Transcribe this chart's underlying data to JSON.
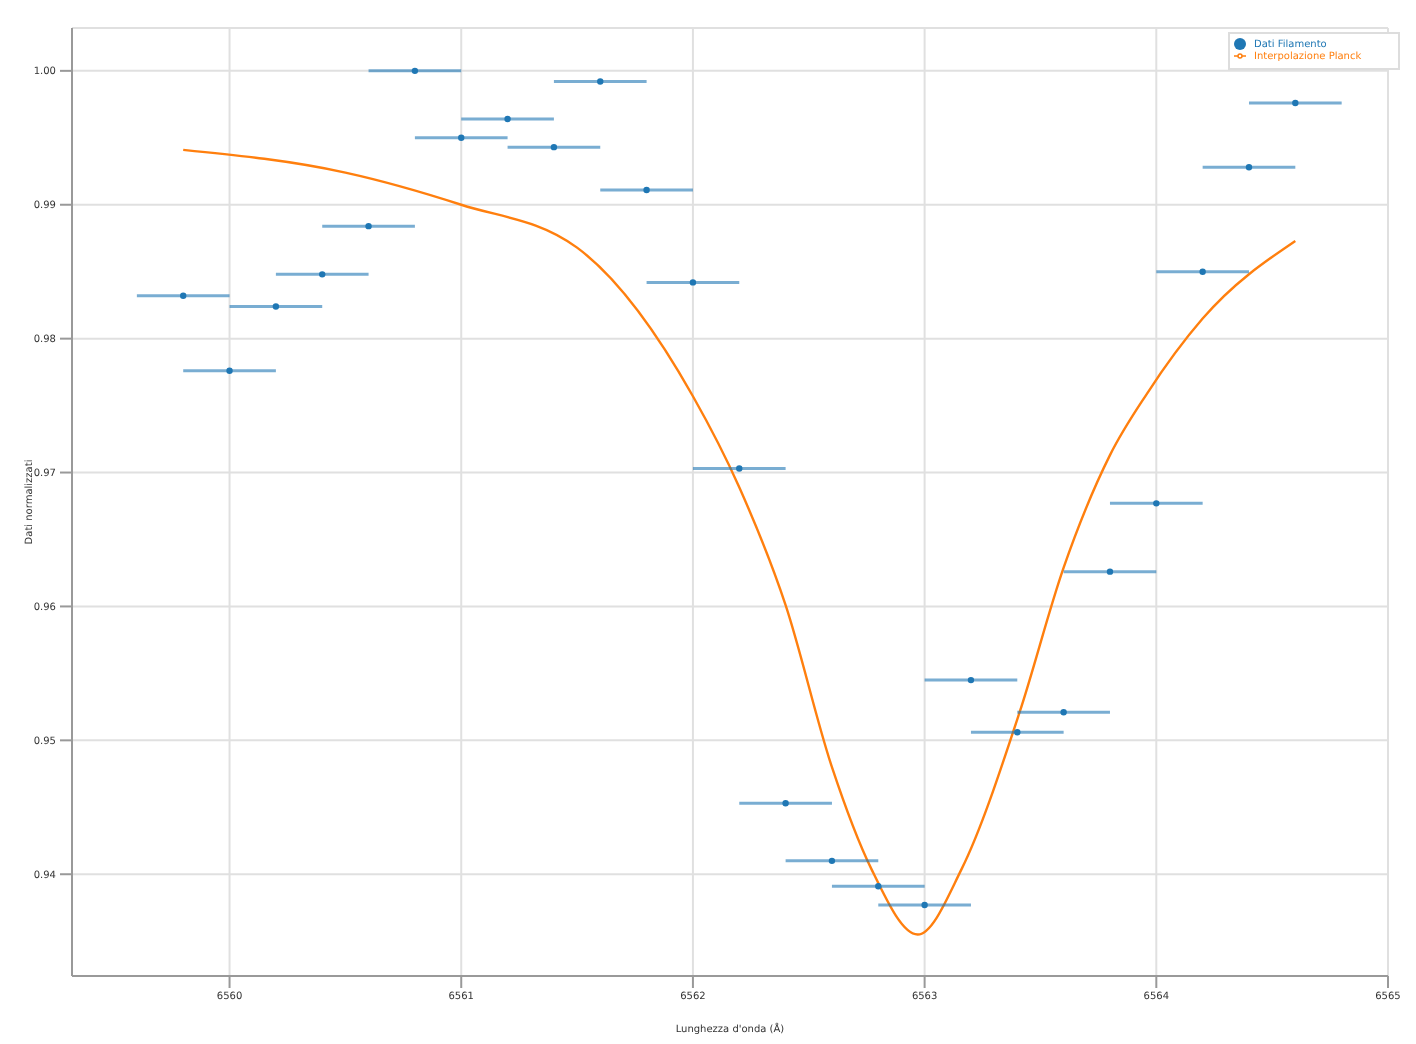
{
  "chart_data": {
    "type": "scatter",
    "xlabel": "Lunghezza d'onda (Å)",
    "ylabel": "Dati normalizzati",
    "xlim": [
      6559.32,
      6565
    ],
    "xticks": [
      6560,
      6561,
      6562,
      6563,
      6564,
      6565
    ],
    "ylim": [
      0.9324,
      1.0032
    ],
    "yticks": [
      {
        "value": 0.94,
        "label": "0.94"
      },
      {
        "value": 0.95,
        "label": "0.95"
      },
      {
        "value": 0.96,
        "label": "0.96"
      },
      {
        "value": 0.97,
        "label": "0.97"
      },
      {
        "value": 0.98,
        "label": "0.98"
      },
      {
        "value": 0.99,
        "label": "0.99"
      },
      {
        "value": 1.0,
        "label": "1.00"
      }
    ],
    "grid": true,
    "legend": "top right",
    "series": [
      {
        "name": "Interpolazione Planck",
        "type": "line",
        "color": "#ff7f0e",
        "marker": "none",
        "line_style": "solid",
        "x": [
          6559.8,
          6560.5,
          6561.0,
          6561.5,
          6562.0,
          6562.2,
          6562.4,
          6562.6,
          6562.77,
          6562.97,
          6563.16,
          6563.41,
          6563.6,
          6563.8,
          6563.96,
          6564.2,
          6564.6
        ],
        "values": [
          0.9941,
          0.9924,
          0.99,
          0.9868,
          0.9757,
          0.9689,
          0.9601,
          0.948,
          0.9404,
          0.9355,
          0.9404,
          0.9521,
          0.9629,
          0.9713,
          0.9759,
          0.9815,
          0.9873
        ]
      },
      {
        "name": "Dati Filamento",
        "color": "#1f77b4",
        "marker": "circle",
        "x": [
          6559.8,
          6560.0,
          6560.2,
          6560.4,
          6560.6,
          6560.8,
          6561.0,
          6561.2,
          6561.4,
          6561.6,
          6561.8,
          6562.0,
          6562.2,
          6562.4,
          6562.6,
          6562.8,
          6563.0,
          6563.2,
          6563.4,
          6563.6,
          6563.8,
          6564.0,
          6564.2,
          6564.4,
          6564.6
        ],
        "values": [
          0.9832,
          0.9776,
          0.9824,
          0.9848,
          0.9884,
          1.0,
          0.995,
          0.9964,
          0.9943,
          0.9992,
          0.9911,
          0.9842,
          0.9703,
          0.9453,
          0.941,
          0.9391,
          0.9377,
          0.9545,
          0.9506,
          0.9521,
          0.9626,
          0.9677,
          0.985,
          0.9928,
          0.9976
        ],
        "xerrors": [
          0.2,
          0.2,
          0.2,
          0.2,
          0.2,
          0.2,
          0.2,
          0.2,
          0.2,
          0.2,
          0.2,
          0.2,
          0.2,
          0.2,
          0.2,
          0.2,
          0.2,
          0.2,
          0.2,
          0.2,
          0.2,
          0.2,
          0.2,
          0.2,
          0.2
        ]
      }
    ]
  }
}
